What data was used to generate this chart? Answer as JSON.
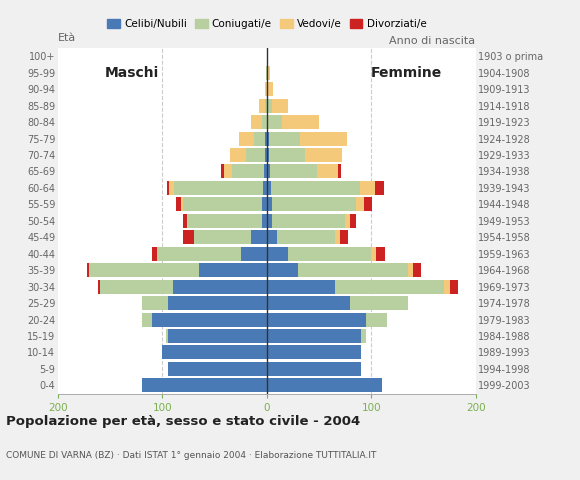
{
  "age_groups": [
    "0-4",
    "5-9",
    "10-14",
    "15-19",
    "20-24",
    "25-29",
    "30-34",
    "35-39",
    "40-44",
    "45-49",
    "50-54",
    "55-59",
    "60-64",
    "65-69",
    "70-74",
    "75-79",
    "80-84",
    "85-89",
    "90-94",
    "95-99",
    "100+"
  ],
  "birth_years": [
    "1999-2003",
    "1994-1998",
    "1989-1993",
    "1984-1988",
    "1979-1983",
    "1974-1978",
    "1969-1973",
    "1964-1968",
    "1959-1963",
    "1954-1958",
    "1949-1953",
    "1944-1948",
    "1939-1943",
    "1934-1938",
    "1929-1933",
    "1924-1928",
    "1919-1923",
    "1914-1918",
    "1909-1913",
    "1904-1908",
    "1903 o prima"
  ],
  "males": {
    "celibe": [
      120,
      95,
      100,
      95,
      110,
      95,
      90,
      65,
      25,
      15,
      5,
      5,
      4,
      3,
      2,
      2,
      0,
      0,
      0,
      0,
      0
    ],
    "coniugato": [
      0,
      0,
      0,
      2,
      10,
      25,
      70,
      105,
      80,
      55,
      70,
      75,
      85,
      30,
      18,
      10,
      5,
      2,
      0,
      1,
      0
    ],
    "vedovo": [
      0,
      0,
      0,
      0,
      0,
      0,
      0,
      0,
      0,
      0,
      1,
      2,
      5,
      8,
      15,
      15,
      10,
      5,
      2,
      0,
      0
    ],
    "divorziato": [
      0,
      0,
      0,
      0,
      0,
      0,
      2,
      2,
      5,
      10,
      4,
      5,
      2,
      3,
      0,
      0,
      0,
      0,
      0,
      0,
      0
    ]
  },
  "females": {
    "nubile": [
      110,
      90,
      90,
      90,
      95,
      80,
      65,
      30,
      20,
      10,
      5,
      5,
      4,
      3,
      2,
      2,
      0,
      0,
      0,
      0,
      0
    ],
    "coniugata": [
      0,
      0,
      0,
      5,
      20,
      55,
      105,
      105,
      80,
      55,
      70,
      80,
      85,
      45,
      35,
      30,
      15,
      5,
      1,
      1,
      0
    ],
    "vedova": [
      0,
      0,
      0,
      0,
      0,
      0,
      5,
      5,
      5,
      5,
      5,
      8,
      15,
      20,
      35,
      45,
      35,
      15,
      5,
      2,
      0
    ],
    "divorziata": [
      0,
      0,
      0,
      0,
      0,
      0,
      8,
      8,
      8,
      8,
      5,
      8,
      8,
      3,
      0,
      0,
      0,
      0,
      0,
      0,
      0
    ]
  },
  "colors": {
    "celibe_nubile": "#4a7ab5",
    "coniugato_coniugata": "#b8cfa0",
    "vedovo_vedova": "#f5c97a",
    "divorziato_divorziata": "#cc2222"
  },
  "legend_labels": [
    "Celibi/Nubili",
    "Coniugati/e",
    "Vedovi/e",
    "Divorziati/e"
  ],
  "xlim": [
    -200,
    200
  ],
  "xticks": [
    -200,
    -100,
    0,
    100,
    200
  ],
  "xticklabels": [
    "200",
    "100",
    "0",
    "100",
    "200"
  ],
  "title": "Popolazione per età, sesso e stato civile - 2004",
  "subtitle": "COMUNE DI VARNA (BZ) · Dati ISTAT 1° gennaio 2004 · Elaborazione TUTTITALIA.IT",
  "ylabel_left": "Età",
  "ylabel_right": "Anno di nascita",
  "label_maschi": "Maschi",
  "label_femmine": "Femmine",
  "bg_color": "#f0f0f0",
  "plot_bg_color": "#ffffff",
  "bar_height": 0.85,
  "tick_color": "#7ab050",
  "grid_color": "#cccccc"
}
